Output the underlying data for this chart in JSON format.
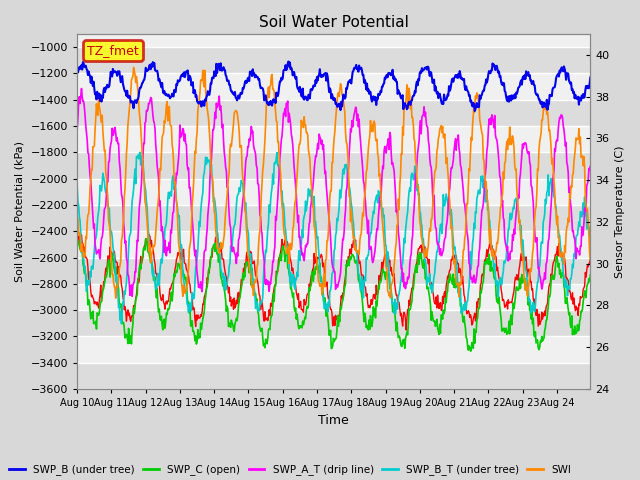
{
  "title": "Soil Water Potential",
  "ylabel_left": "Soil Water Potential (kPa)",
  "ylabel_right": "Sensor Temperature (C)",
  "xlabel": "Time",
  "ylim_left": [
    -3600,
    -900
  ],
  "ylim_right": [
    24,
    41
  ],
  "yticks_left": [
    -3600,
    -3400,
    -3200,
    -3000,
    -2800,
    -2600,
    -2400,
    -2200,
    -2000,
    -1800,
    -1600,
    -1400,
    -1200,
    -1000
  ],
  "yticks_right": [
    24,
    26,
    28,
    30,
    32,
    34,
    36,
    38,
    40
  ],
  "legend_label": "TZ_fmet",
  "legend_bg": "#FFFF00",
  "legend_border": "#CC0000",
  "bg_color": "#D8D8D8",
  "plot_bg_light": "#F0F0F0",
  "plot_bg_dark": "#DCDCDC",
  "grid_color": "#FFFFFF",
  "blue_color": "#0000EE",
  "green_color": "#00CC00",
  "magenta_color": "#FF00FF",
  "cyan_color": "#00CCCC",
  "red_color": "#FF0000",
  "orange_color": "#FF8800",
  "bottom_legend_labels": [
    "SWP_B (under tree)",
    "SWP_C (open)",
    "SWP_A_T (drip line)",
    "SWP_B_T (under tree)",
    "SWI"
  ],
  "bottom_legend_colors": [
    "#0000EE",
    "#00CC00",
    "#FF00FF",
    "#00CCCC",
    "#FF8800"
  ]
}
